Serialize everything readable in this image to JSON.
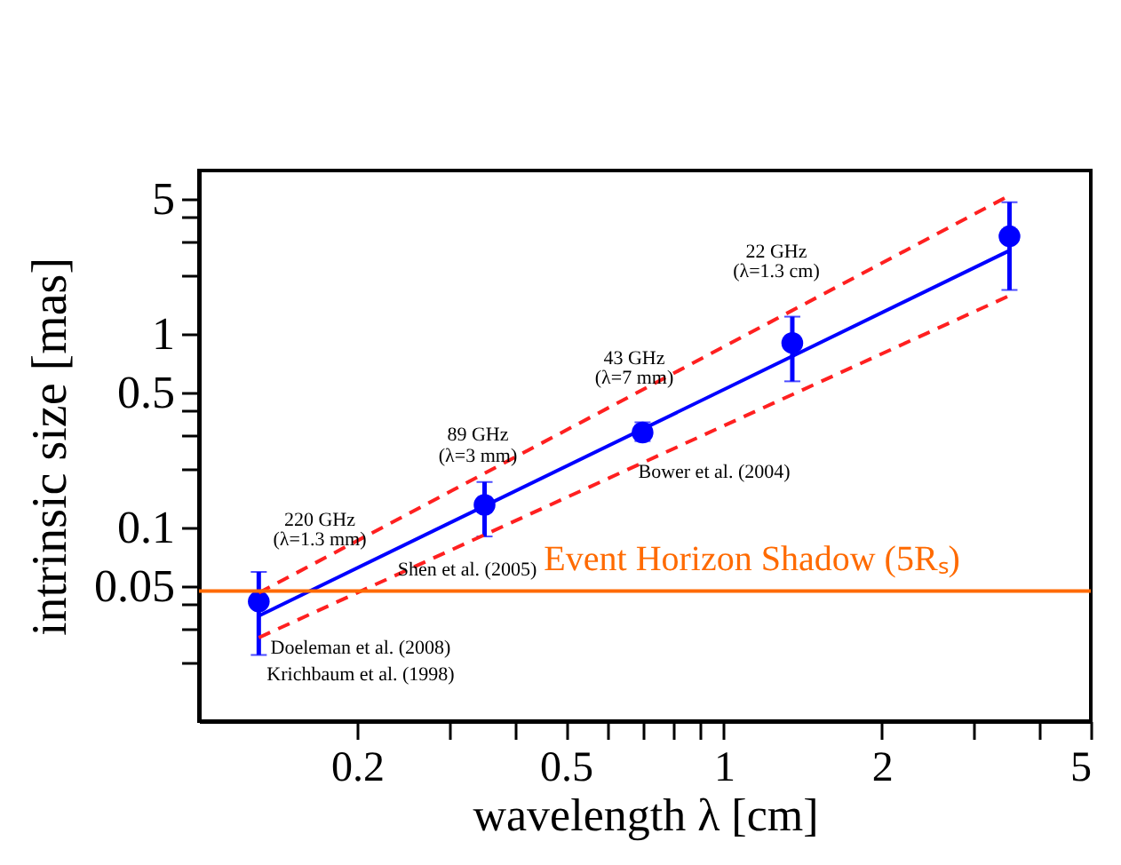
{
  "chart_data": {
    "type": "scatter",
    "xlabel": "wavelength λ [cm]",
    "ylabel": "intrinsic size [mas]",
    "log": "xy",
    "grid": false,
    "xlim": [
      0.1,
      5
    ],
    "xticks": [
      0.2,
      {
        "value": 0.3,
        "label": null
      },
      {
        "value": 0.4,
        "label": null
      },
      0.5,
      {
        "value": 0.6,
        "label": null
      },
      {
        "value": 0.7,
        "label": null
      },
      {
        "value": 0.8,
        "label": null
      },
      {
        "value": 0.9,
        "label": null
      },
      1,
      2,
      {
        "value": 3,
        "label": null
      },
      {
        "value": 4,
        "label": null
      },
      5
    ],
    "ylim": [
      0.01,
      7
    ],
    "yticks": [
      {
        "value": 0.02,
        "label": null
      },
      {
        "value": 0.03,
        "label": null
      },
      {
        "value": 0.04,
        "label": null
      },
      0.05,
      0.1,
      {
        "value": 0.2,
        "label": null
      },
      {
        "value": 0.3,
        "label": null
      },
      {
        "value": 0.4,
        "label": null
      },
      0.5,
      1,
      {
        "value": 2,
        "label": null
      },
      {
        "value": 3,
        "label": null
      },
      {
        "value": 4,
        "label": null
      },
      5
    ],
    "series": [
      {
        "color": "#0000ff",
        "marker": "circle",
        "x": [
          0.13,
          0.35,
          0.7,
          1.35,
          3.5
        ],
        "values": [
          0.0415,
          0.131,
          0.31,
          0.9,
          3.2
        ],
        "errors": [
          [
            0.022,
            0.059
          ],
          [
            0.09,
            0.172
          ],
          [
            0.28,
            0.35
          ],
          [
            0.57,
            1.23
          ],
          [
            1.69,
            4.8
          ]
        ]
      },
      {
        "type": "line",
        "color": "#0000ff",
        "line_style": "solid",
        "x": [
          0.13,
          3.5
        ],
        "values": [
          0.035,
          2.7
        ]
      },
      {
        "type": "line",
        "color": "#ff2020",
        "line_style": "dashed",
        "x": [
          0.13,
          3.5
        ],
        "values": [
          0.046,
          5.2
        ]
      },
      {
        "type": "line",
        "color": "#ff2020",
        "line_style": "dashed",
        "x": [
          0.13,
          3.5
        ],
        "values": [
          0.027,
          1.58
        ]
      }
    ],
    "ref_lines": [
      {
        "axis": "y",
        "value": 0.047,
        "label": "Event Horizon Shadow (5Rₛ)",
        "color": "#ff6a00"
      }
    ],
    "annotations": [
      "220 GHz",
      "(λ=1.3 mm)",
      "89 GHz",
      "(λ=3 mm)",
      "43 GHz",
      "(λ=7 mm)",
      "22 GHz",
      "(λ=1.3 cm)",
      "Bower et al. (2004)",
      "Shen et al. (2005)",
      "Doeleman et al. (2008)",
      "Krichbaum et al. (1998)"
    ]
  }
}
